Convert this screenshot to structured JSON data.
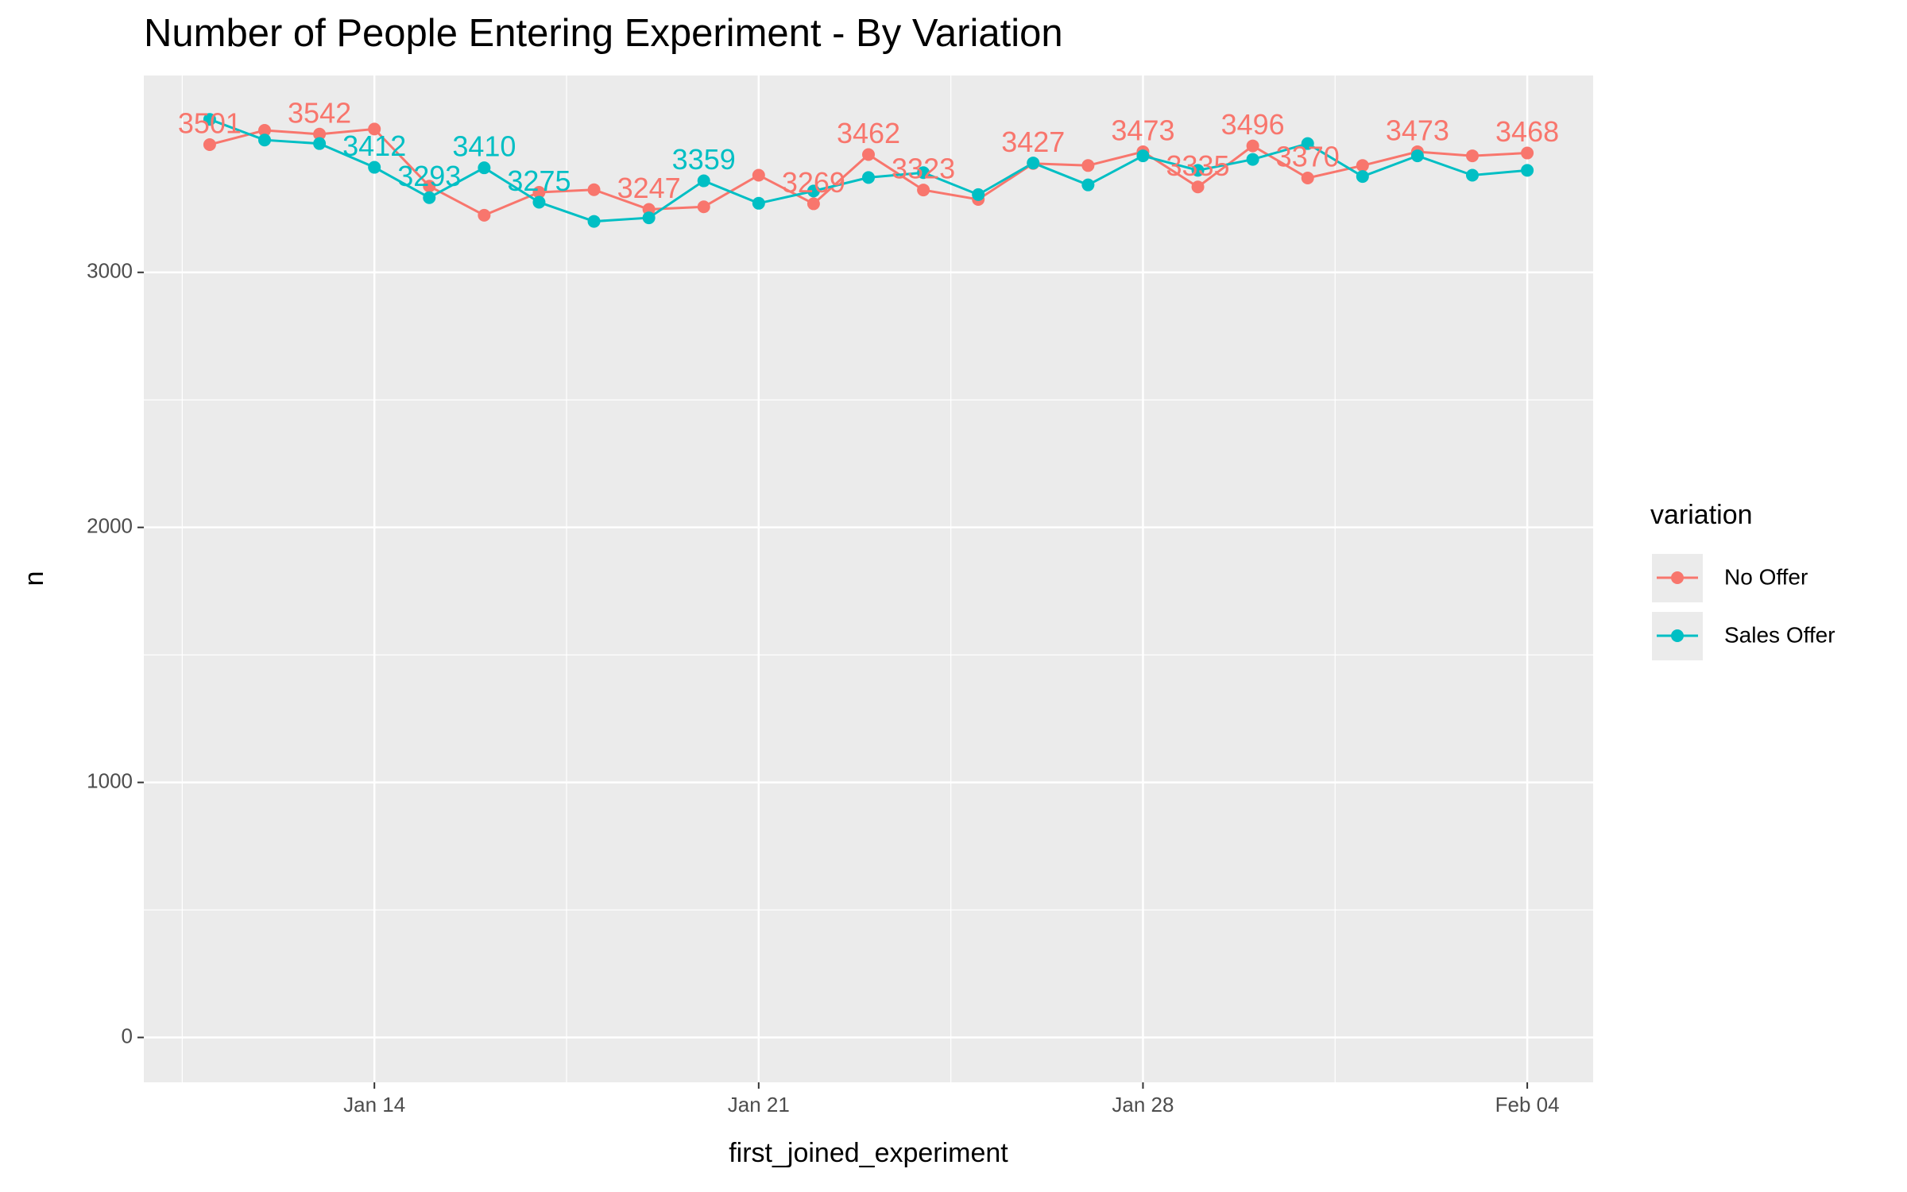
{
  "chart_data": {
    "type": "line",
    "title": "Number of People Entering Experiment - By Variation",
    "x_label": "first_joined_experiment",
    "y_label": "n",
    "categories": [
      null,
      null,
      null,
      "Jan 14",
      null,
      null,
      null,
      null,
      null,
      null,
      "Jan 21",
      null,
      null,
      null,
      null,
      null,
      null,
      "Jan 28",
      null,
      null,
      null,
      null,
      null,
      null,
      "Feb 04"
    ],
    "series": [
      {
        "name": "No Offer",
        "color": "#F8766D",
        "values": [
          3501,
          3557,
          3542,
          3562,
          3338,
          3224,
          3314,
          3324,
          3247,
          3257,
          3381,
          3269,
          3462,
          3323,
          3286,
          3427,
          3419,
          3473,
          3335,
          3496,
          3370,
          3419,
          3473,
          3457,
          3468
        ],
        "value_labels": [
          "3501",
          null,
          "3542",
          null,
          null,
          null,
          null,
          null,
          "3247",
          null,
          null,
          "3269",
          "3462",
          "3323",
          null,
          "3427",
          null,
          "3473",
          "3335",
          "3496",
          "3370",
          null,
          "3473",
          null,
          "3468"
        ]
      },
      {
        "name": "Sales Offer",
        "color": "#00BFC4",
        "values": [
          3600,
          3519,
          3505,
          3412,
          3293,
          3410,
          3275,
          3200,
          3214,
          3359,
          3271,
          3319,
          3372,
          3391,
          3305,
          3429,
          3343,
          3457,
          3400,
          3443,
          3505,
          3376,
          3457,
          3381,
          3400
        ],
        "value_labels": [
          null,
          null,
          null,
          "3412",
          "3293",
          "3410",
          "3275",
          null,
          null,
          "3359",
          null,
          null,
          null,
          null,
          null,
          null,
          null,
          null,
          null,
          null,
          null,
          null,
          null,
          null,
          null
        ]
      }
    ],
    "ylim": [
      -176,
      3772
    ],
    "yticks": [
      0,
      1000,
      2000,
      3000
    ],
    "grid": true,
    "legend_title": "variation",
    "legend": "right"
  }
}
